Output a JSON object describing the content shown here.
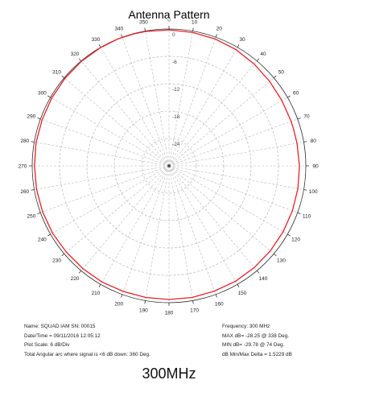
{
  "page": {
    "title": "Antenna Pattern",
    "caption": "300MHz"
  },
  "info": {
    "name": "Name: SQUAD IAM  SN: 00015",
    "datetime": "Date/Time = 09/11/2016 12:05:12",
    "plot_scale": "Plot Scale: 6 dB/Div",
    "angular_arc": "Total Angular arc where signal is <6 dB down: 360 Deg.",
    "frequency": "Frequency: 300 MHz",
    "max_db": "MAX dB= -28.25 @ 338 Deg.",
    "min_db": "MIN dB= -29.78 @ 74 Deg.",
    "delta": "dB Min/Max Delta = 1.5229 dB"
  },
  "colors": {
    "trace": "#e8212a",
    "grid": "#b8b8b8",
    "axis": "#333333"
  },
  "chart_data": {
    "type": "polar",
    "title": "Antenna Pattern",
    "angle_labels": [
      "0",
      "10",
      "20",
      "30",
      "40",
      "50",
      "60",
      "70",
      "80",
      "90",
      "100",
      "110",
      "120",
      "130",
      "140",
      "150",
      "160",
      "170",
      "180",
      "190",
      "200",
      "210",
      "220",
      "230",
      "240",
      "250",
      "260",
      "270",
      "280",
      "290",
      "300",
      "310",
      "320",
      "330",
      "340",
      "350"
    ],
    "radial_labels": [
      "0",
      "-6",
      "-12",
      "-18",
      "-24"
    ],
    "radial_range_db": [
      -30,
      0
    ],
    "plot_scale_db_per_div": 6,
    "series": [
      {
        "angles_deg": [
          0,
          10,
          20,
          30,
          40,
          50,
          60,
          70,
          74,
          80,
          90,
          100,
          110,
          120,
          130,
          140,
          150,
          160,
          170,
          180,
          190,
          200,
          210,
          220,
          230,
          240,
          250,
          260,
          270,
          280,
          290,
          300,
          310,
          320,
          330,
          338,
          345,
          350
        ],
        "normalized_db": [
          -0.2,
          -0.3,
          -0.4,
          -0.6,
          -0.9,
          -1.2,
          -1.4,
          -1.5,
          -1.53,
          -1.5,
          -1.4,
          -1.3,
          -1.2,
          -1.1,
          -1.0,
          -0.9,
          -0.8,
          -0.8,
          -0.7,
          -0.7,
          -0.7,
          -0.7,
          -0.6,
          -0.6,
          -0.6,
          -0.5,
          -0.5,
          -0.5,
          -0.5,
          -0.4,
          -0.4,
          -0.3,
          -0.2,
          -0.1,
          -0.05,
          0.0,
          -0.05,
          -0.1
        ]
      }
    ],
    "max": {
      "db": -28.25,
      "angle_deg": 338
    },
    "min": {
      "db": -29.78,
      "angle_deg": 74
    },
    "grid": true
  }
}
